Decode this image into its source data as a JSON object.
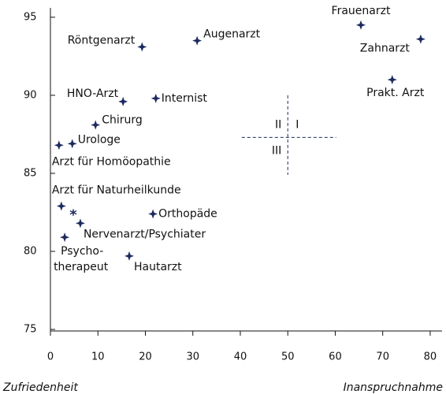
{
  "chart_data": {
    "type": "scatter",
    "x_label": "Inanspruchnahme",
    "y_label": "Zufriedenheit",
    "xlim": [
      0,
      82.5
    ],
    "ylim": [
      74.9,
      95.6
    ],
    "xticks": [
      0,
      10,
      20,
      30,
      40,
      50,
      60,
      70,
      80
    ],
    "yticks": [
      75,
      80,
      85,
      90,
      95
    ],
    "color": "#1c2a5e",
    "points": [
      {
        "label": "Frauenarzt",
        "x": 65.4,
        "y": 94.5
      },
      {
        "label": "Zahnarzt",
        "x": 78,
        "y": 93.6
      },
      {
        "label": "Prakt. Arzt",
        "x": 72,
        "y": 91.0
      },
      {
        "label": "Augenarzt",
        "x": 30.9,
        "y": 93.5
      },
      {
        "label": "Röntgenarzt",
        "x": 19.3,
        "y": 93.1
      },
      {
        "label": "HNO-Arzt",
        "x": 15.3,
        "y": 89.6
      },
      {
        "label": "Internist",
        "x": 22.2,
        "y": 89.8
      },
      {
        "label": "Chirurg",
        "x": 9.5,
        "y": 88.1
      },
      {
        "label": "Urologe",
        "x": 4.6,
        "y": 86.9
      },
      {
        "label": "Arzt für Homöopathie",
        "x": 1.8,
        "y": 86.8
      },
      {
        "label": "Arzt für Naturheilkunde",
        "x": 2.3,
        "y": 82.9
      },
      {
        "label": "Nervenarzt/Psychiater",
        "x": 6.3,
        "y": 81.8
      },
      {
        "label": "Orthopäde",
        "x": 21.6,
        "y": 82.4
      },
      {
        "label": [
          "Psycho-",
          "therapeut"
        ],
        "x": 3.0,
        "y": 80.9
      },
      {
        "label": "Hautarzt",
        "x": 16.6,
        "y": 79.7
      }
    ],
    "annotations": [
      {
        "text": "*",
        "x": 4.8,
        "y": 82.5
      }
    ],
    "quadrant": {
      "x": 50,
      "y": 87.3,
      "x_range": [
        40.3,
        60.2
      ],
      "y_range": [
        84.9,
        90
      ],
      "labels": [
        "I",
        "II",
        "III"
      ]
    }
  }
}
